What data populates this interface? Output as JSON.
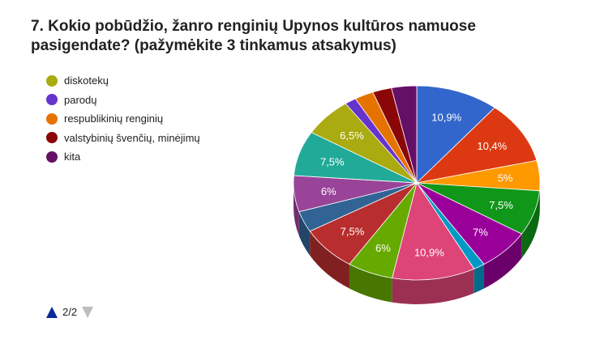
{
  "chart_data": {
    "type": "pie",
    "title": "7. Kokio pobūdžio, žanro renginių Upynos kultūros namuose pasigendate? (pažymėkite 3 tinkamus atsakymus)",
    "legend_position": "left",
    "slices": [
      {
        "value": 10.9,
        "label": "10,9%",
        "color": "#3366cc"
      },
      {
        "value": 10.4,
        "label": "10,4%",
        "color": "#dc3912"
      },
      {
        "value": 5.0,
        "label": "5%",
        "color": "#ff9900"
      },
      {
        "value": 7.5,
        "label": "7,5%",
        "color": "#109618"
      },
      {
        "value": 7.0,
        "label": "7%",
        "color": "#990099"
      },
      {
        "value": 1.5,
        "label": "",
        "color": "#0099c6"
      },
      {
        "value": 10.9,
        "label": "10,9%",
        "color": "#dd4477"
      },
      {
        "value": 6.0,
        "label": "6%",
        "color": "#66aa00"
      },
      {
        "value": 7.5,
        "label": "7,5%",
        "color": "#b82e2e"
      },
      {
        "value": 3.5,
        "label": "",
        "color": "#316395"
      },
      {
        "value": 6.0,
        "label": "6%",
        "color": "#994499"
      },
      {
        "value": 7.5,
        "label": "7,5%",
        "color": "#22aa99"
      },
      {
        "value": 6.5,
        "label": "6,5%",
        "color": "#aaaa11",
        "name": "diskotekų"
      },
      {
        "value": 1.5,
        "label": "",
        "color": "#6633cc",
        "name": "parodų"
      },
      {
        "value": 2.5,
        "label": "",
        "color": "#e67300",
        "name": "respublikinių renginių"
      },
      {
        "value": 2.5,
        "label": "",
        "color": "#8b0707",
        "name": "valstybinių švenčių, minėjimų"
      },
      {
        "value": 3.3,
        "label": "",
        "color": "#651067",
        "name": "kita"
      }
    ]
  },
  "legend": [
    {
      "name": "diskotekų",
      "color": "#aaaa11"
    },
    {
      "name": "parodų",
      "color": "#6633cc"
    },
    {
      "name": "respublikinių renginių",
      "color": "#e67300"
    },
    {
      "name": "valstybinių švenčių, minėjimų",
      "color": "#8b0707"
    },
    {
      "name": "kita",
      "color": "#651067"
    }
  ],
  "pager": {
    "text": "2/2"
  }
}
